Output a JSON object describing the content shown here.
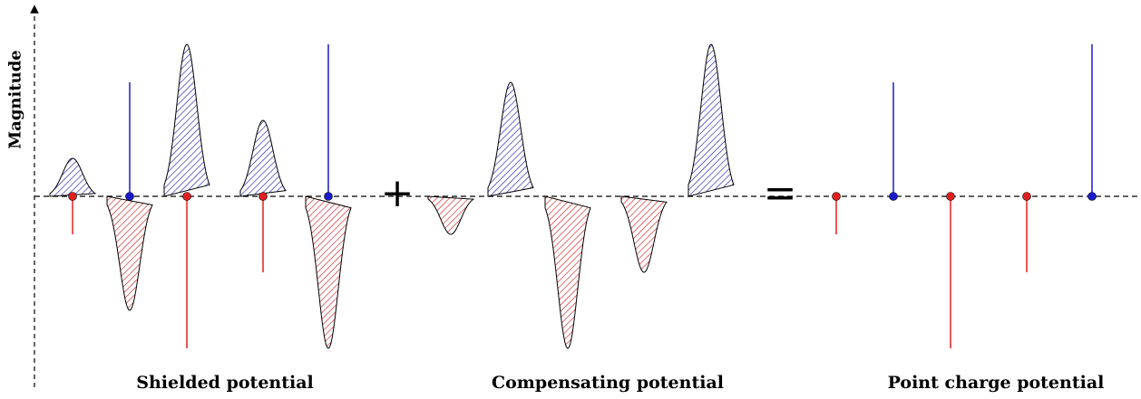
{
  "axis": {
    "ylabel": "Magnitude"
  },
  "operators": {
    "plus": "+",
    "equals": "="
  },
  "colors": {
    "positive": "#1a1acc",
    "negative": "#e02020",
    "outline": "#000000",
    "hatch_pos": "#2020b0",
    "hatch_neg": "#d02020"
  },
  "panels": [
    {
      "id": "shielded",
      "caption": "Shielded potential",
      "gaussians": [
        {
          "center": 1,
          "sign": 1,
          "magnitude": 1
        },
        {
          "center": 2,
          "sign": -1,
          "magnitude": 3
        },
        {
          "center": 3,
          "sign": 1,
          "magnitude": 4
        },
        {
          "center": 4,
          "sign": 1,
          "magnitude": 2
        },
        {
          "center": 5,
          "sign": -1,
          "magnitude": 4
        }
      ],
      "point_charges": [
        {
          "position": 1,
          "sign": -1,
          "magnitude": 1
        },
        {
          "position": 2,
          "sign": 1,
          "magnitude": 3
        },
        {
          "position": 3,
          "sign": -1,
          "magnitude": 4
        },
        {
          "position": 4,
          "sign": -1,
          "magnitude": 2
        },
        {
          "position": 5,
          "sign": 1,
          "magnitude": 4
        }
      ]
    },
    {
      "id": "compensating",
      "caption": "Compensating potential",
      "gaussians": [
        {
          "center": 1,
          "sign": -1,
          "magnitude": 1
        },
        {
          "center": 2,
          "sign": 1,
          "magnitude": 3
        },
        {
          "center": 3,
          "sign": -1,
          "magnitude": 4
        },
        {
          "center": 4,
          "sign": -1,
          "magnitude": 2
        },
        {
          "center": 5,
          "sign": 1,
          "magnitude": 4
        }
      ],
      "point_charges": []
    },
    {
      "id": "point",
      "caption": "Point charge potential",
      "gaussians": [],
      "point_charges": [
        {
          "position": 1,
          "sign": -1,
          "magnitude": 1
        },
        {
          "position": 2,
          "sign": 1,
          "magnitude": 3
        },
        {
          "position": 3,
          "sign": -1,
          "magnitude": 4
        },
        {
          "position": 4,
          "sign": -1,
          "magnitude": 2
        },
        {
          "position": 5,
          "sign": 1,
          "magnitude": 4
        }
      ]
    }
  ]
}
